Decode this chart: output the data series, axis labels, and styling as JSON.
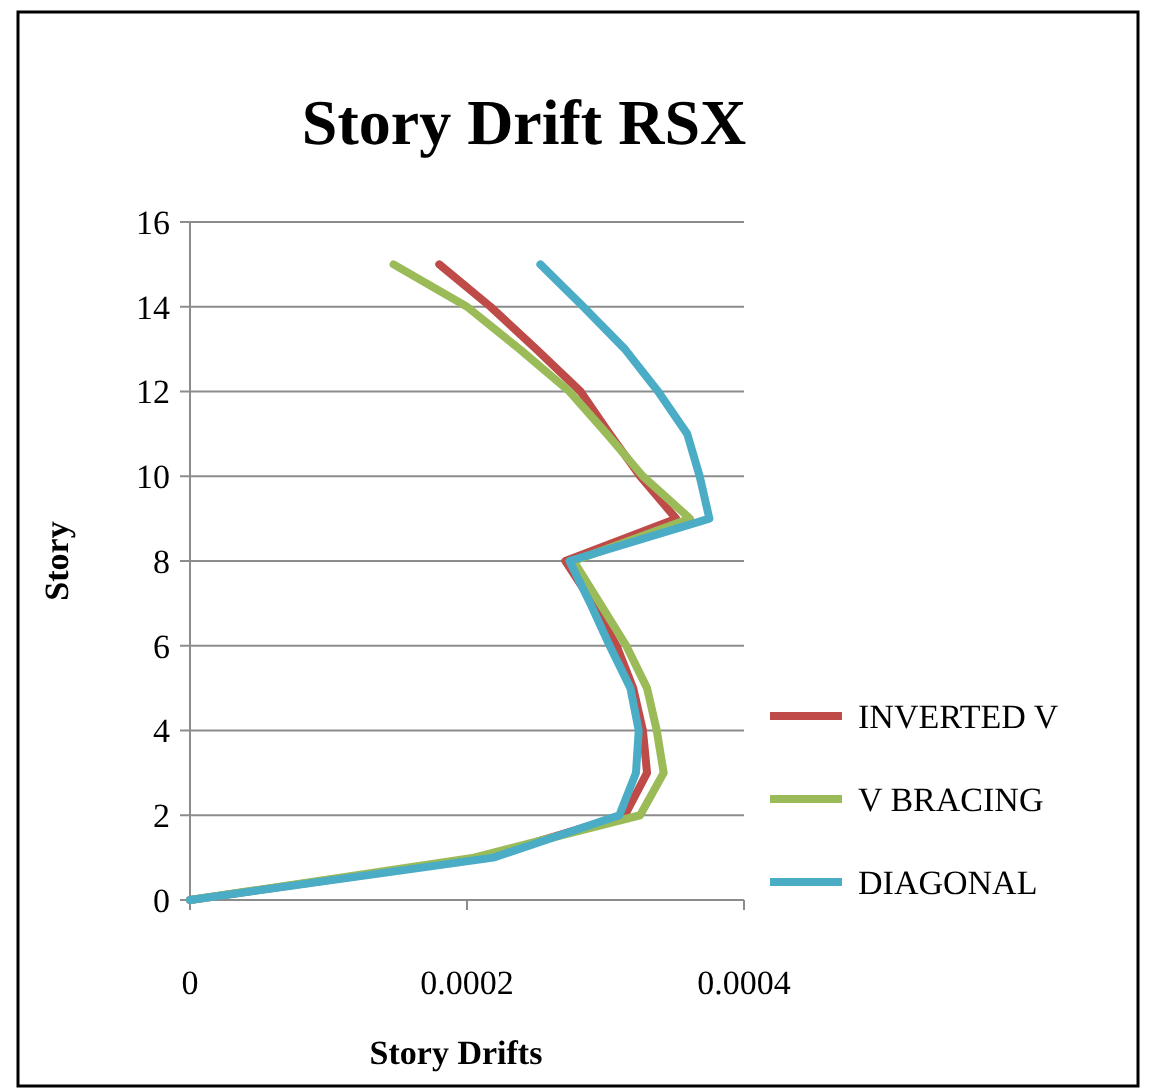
{
  "chart_data": {
    "type": "line",
    "title": "Story Drift RSX",
    "xlabel": "Story Drifts",
    "ylabel": "Story",
    "xlim": [
      0,
      0.0004
    ],
    "xticks": [
      0,
      0.0002,
      0.0004
    ],
    "ylim": [
      0,
      16
    ],
    "yticks": [
      0,
      2,
      4,
      6,
      8,
      10,
      12,
      14,
      16
    ],
    "grid": "y",
    "legend": "right",
    "marker": "none",
    "series": [
      {
        "name": "INVERTED V",
        "color": "#be4b48",
        "x": [
          0,
          0.000212,
          0.000314,
          0.00033,
          0.000327,
          0.00032,
          0.000308,
          0.000291,
          0.000271,
          0.000351,
          0.000325,
          0.000303,
          0.000282,
          0.00025,
          0.000217,
          0.00018
        ],
        "values": [
          0,
          1,
          2,
          3,
          4,
          5,
          6,
          7,
          8,
          9,
          10,
          11,
          12,
          13,
          14,
          15
        ]
      },
      {
        "name": "V BRACING",
        "color": "#9bbb59",
        "x": [
          0,
          0.000205,
          0.000325,
          0.000342,
          0.000337,
          0.00033,
          0.000315,
          0.000296,
          0.000277,
          0.000361,
          0.000327,
          0.000301,
          0.000274,
          0.000238,
          0.0002,
          0.000147
        ],
        "values": [
          0,
          1,
          2,
          3,
          4,
          5,
          6,
          7,
          8,
          9,
          10,
          11,
          12,
          13,
          14,
          15
        ]
      },
      {
        "name": "DIAGONAL",
        "color": "#4bacc6",
        "x": [
          0,
          0.000219,
          0.00031,
          0.000322,
          0.000324,
          0.000318,
          0.000303,
          0.000289,
          0.000274,
          0.000375,
          0.000368,
          0.000359,
          0.000338,
          0.000314,
          0.000284,
          0.000253
        ],
        "values": [
          0,
          1,
          2,
          3,
          4,
          5,
          6,
          7,
          8,
          9,
          10,
          11,
          12,
          13,
          14,
          15
        ]
      }
    ]
  }
}
